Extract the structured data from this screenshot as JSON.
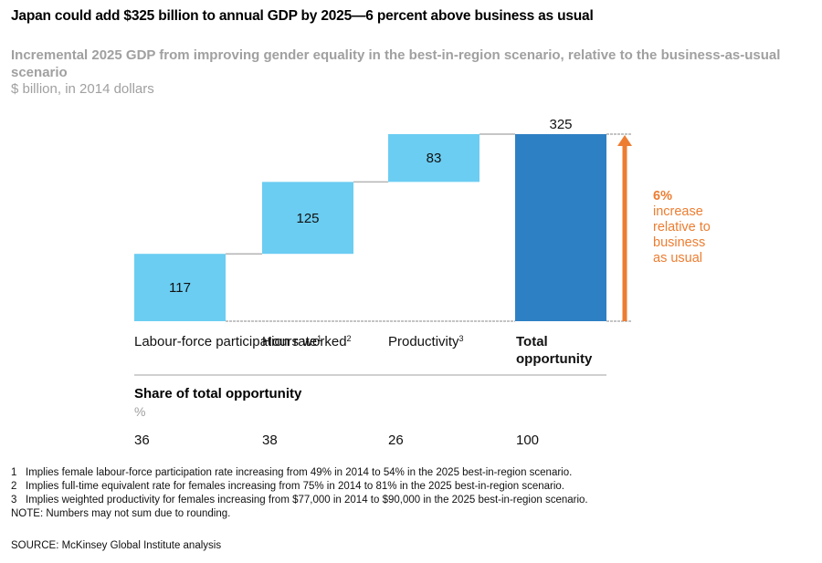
{
  "title": "Japan could add $325 billion to annual GDP by 2025—6 percent above business as usual",
  "subtitle": "Incremental 2025 GDP from improving gender equality in the best-in-region scenario, relative to the business-as-usual scenario",
  "unit": "$ billion, in 2014 dollars",
  "colors": {
    "increment_bar": "#6bcdf2",
    "total_bar": "#2e80c4",
    "callout": "#ed7d31",
    "connector": "#b4b4b4"
  },
  "chart_data": {
    "type": "bar",
    "subtype": "waterfall",
    "title": "Japan could add $325 billion to annual GDP by 2025—6 percent above business as usual",
    "subtitle": "Incremental 2025 GDP from improving gender equality in the best-in-region scenario, relative to the business-as-usual scenario",
    "ylabel": "$ billion, in 2014 dollars",
    "xlabel": "",
    "grid": false,
    "ylim": [
      0,
      325
    ],
    "categories": [
      "Labour-force participation rate",
      "Hours worked",
      "Productivity",
      "Total opportunity"
    ],
    "category_footnotes": [
      "1",
      "2",
      "3",
      ""
    ],
    "category_bold": [
      false,
      false,
      false,
      true
    ],
    "values": [
      117,
      125,
      83,
      325
    ],
    "bar_kinds": [
      "increment",
      "increment",
      "increment",
      "total"
    ],
    "data_labels": [
      "117",
      "125",
      "83",
      "325"
    ],
    "annotation": {
      "value": "6%",
      "text": [
        "increase",
        "relative to",
        "business",
        "as usual"
      ]
    },
    "share": {
      "title": "Share of total opportunity",
      "unit": "%",
      "values": [
        "36",
        "38",
        "26",
        "100"
      ]
    }
  },
  "footnotes": [
    {
      "num": "1",
      "text": "Implies female labour-force participation rate increasing from 49% in 2014 to 54% in the 2025 best-in-region scenario."
    },
    {
      "num": "2",
      "text": "Implies full-time equivalent rate for females increasing from 75% in 2014 to 81% in the 2025 best-in-region scenario."
    },
    {
      "num": "3",
      "text": "Implies weighted productivity for females increasing from $77,000 in 2014 to $90,000 in the 2025 best-in-region scenario."
    }
  ],
  "note": "NOTE: Numbers may not sum due to rounding.",
  "source": "SOURCE:  McKinsey Global Institute analysis"
}
